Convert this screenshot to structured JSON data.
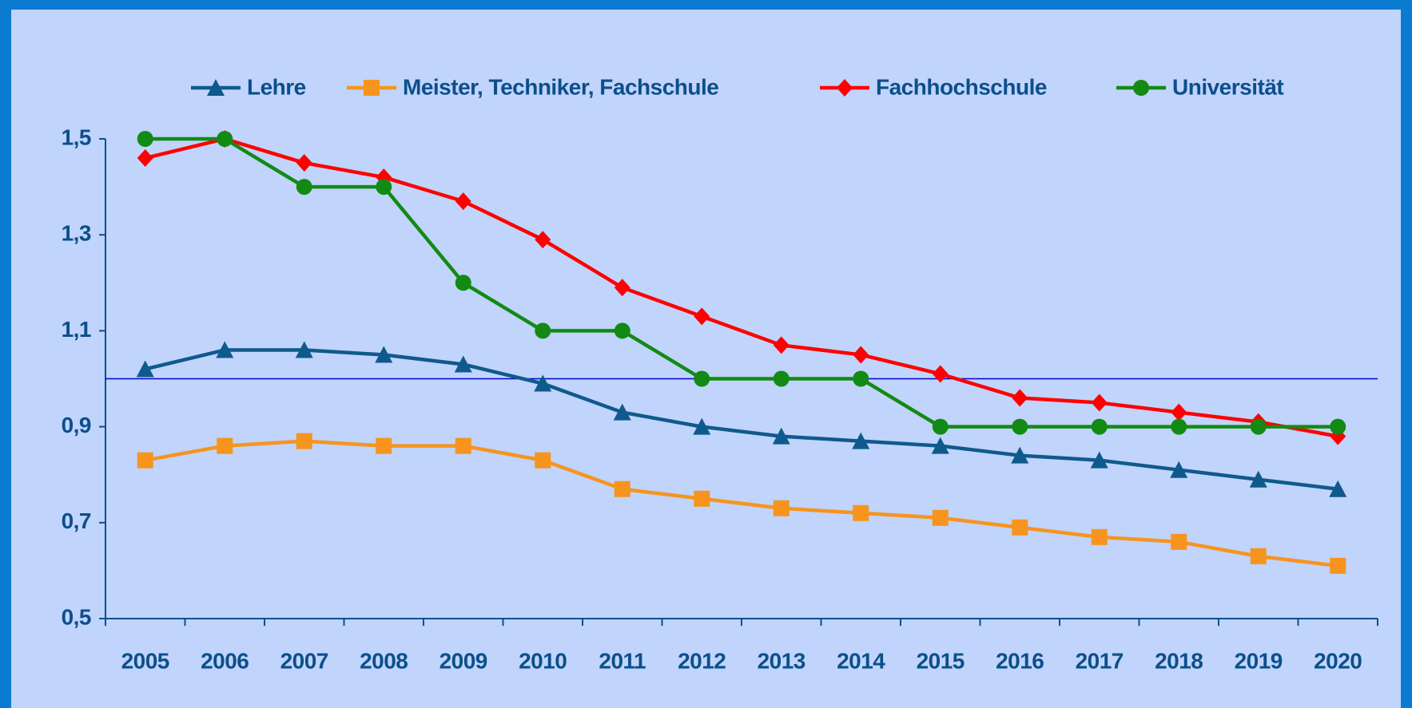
{
  "chart_data": {
    "type": "line",
    "categories": [
      "2005",
      "2006",
      "2007",
      "2008",
      "2009",
      "2010",
      "2011",
      "2012",
      "2013",
      "2014",
      "2015",
      "2016",
      "2017",
      "2018",
      "2019",
      "2020"
    ],
    "series": [
      {
        "name": "Lehre",
        "color": "#0f5a8c",
        "marker": "triangle",
        "values": [
          1.02,
          1.06,
          1.06,
          1.05,
          1.03,
          0.99,
          0.93,
          0.9,
          0.88,
          0.87,
          0.86,
          0.84,
          0.83,
          0.81,
          0.79,
          0.77
        ]
      },
      {
        "name": "Meister, Techniker, Fachschule",
        "color": "#f7941d",
        "marker": "square",
        "values": [
          0.83,
          0.86,
          0.87,
          0.86,
          0.86,
          0.83,
          0.77,
          0.75,
          0.73,
          0.72,
          0.71,
          0.69,
          0.67,
          0.66,
          0.63,
          0.61
        ]
      },
      {
        "name": "Fachhochschule",
        "color": "#ff0000",
        "marker": "diamond",
        "values": [
          1.46,
          1.5,
          1.45,
          1.42,
          1.37,
          1.29,
          1.19,
          1.13,
          1.07,
          1.05,
          1.01,
          0.96,
          0.95,
          0.93,
          0.91,
          0.88
        ]
      },
      {
        "name": "Universität",
        "color": "#138a13",
        "marker": "circle",
        "values": [
          1.5,
          1.5,
          1.4,
          1.4,
          1.2,
          1.1,
          1.1,
          1.0,
          1.0,
          1.0,
          0.9,
          0.9,
          0.9,
          0.9,
          0.9,
          0.9
        ]
      }
    ],
    "ylim": [
      0.5,
      1.5
    ],
    "yticks": [
      {
        "value": 0.5,
        "label": "0,5"
      },
      {
        "value": 0.7,
        "label": "0,7"
      },
      {
        "value": 0.9,
        "label": "0,9"
      },
      {
        "value": 1.1,
        "label": "1,1"
      },
      {
        "value": 1.3,
        "label": "1,3"
      },
      {
        "value": 1.5,
        "label": "1,5"
      }
    ],
    "reference_line": 1.0,
    "reference_color": "#0000cc",
    "legend": "top"
  }
}
